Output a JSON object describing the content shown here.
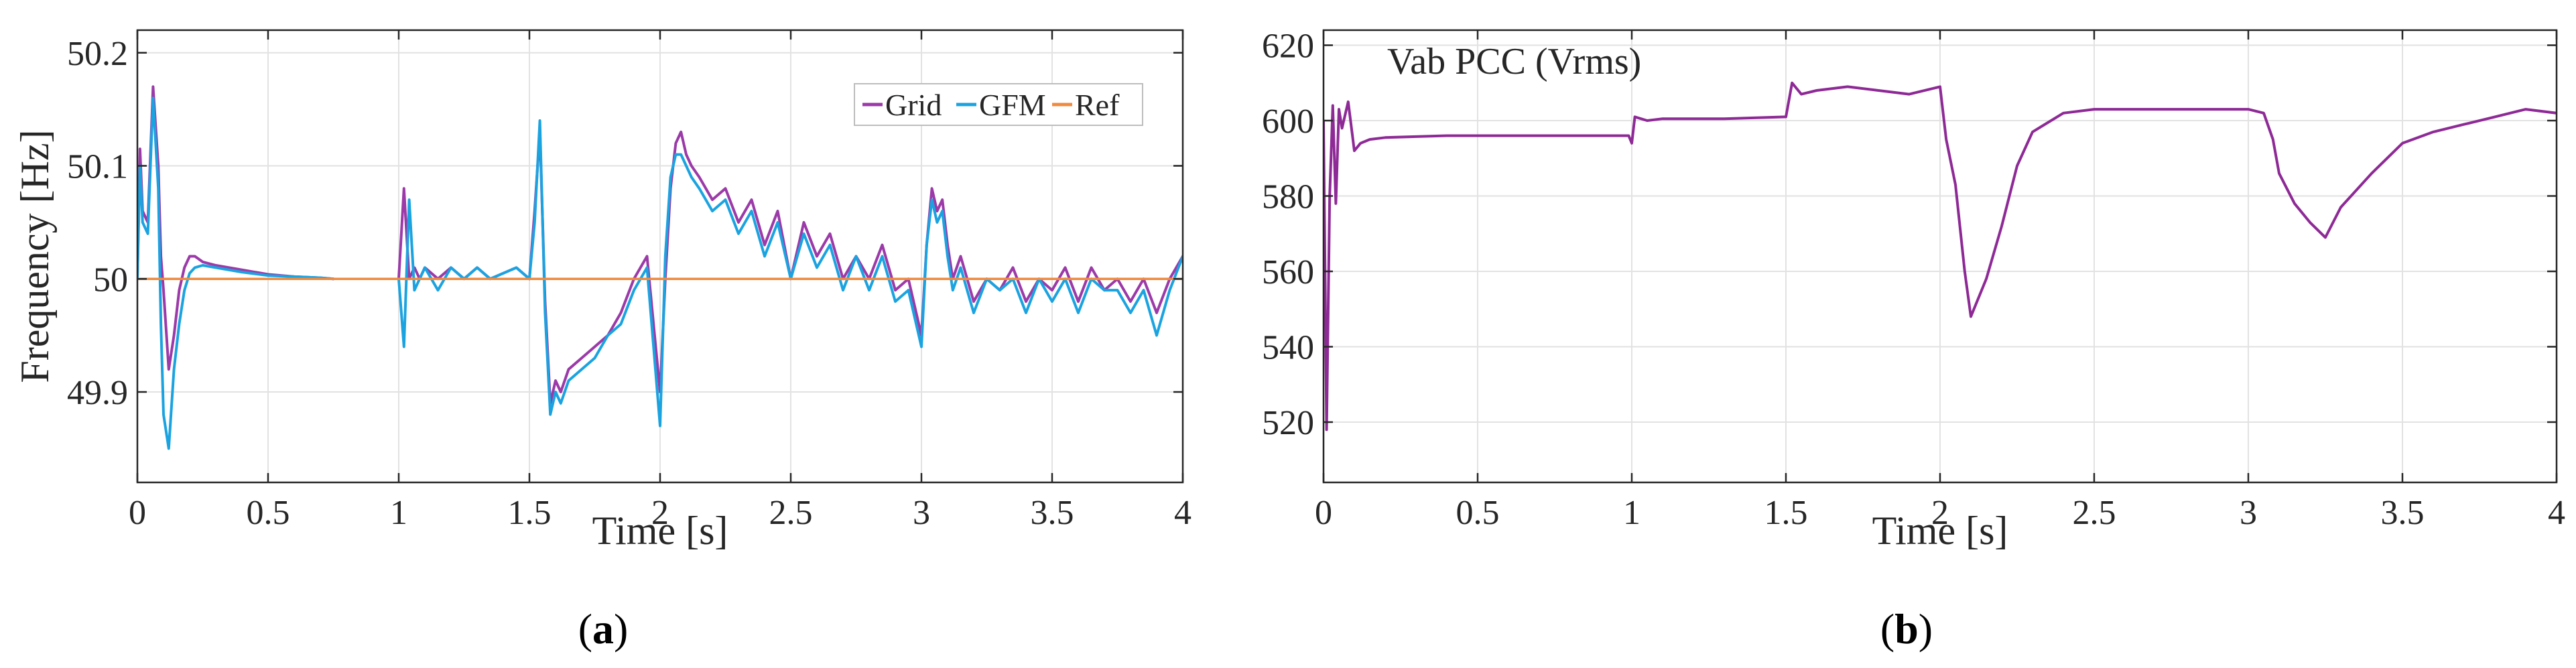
{
  "chart_data": [
    {
      "type": "line",
      "panel_label": "(a)",
      "title": "",
      "xlabel": "Time [s]",
      "ylabel": "Frequency [Hz]",
      "xlim": [
        0,
        4
      ],
      "ylim": [
        49.82,
        50.22
      ],
      "xticks": [
        0,
        0.5,
        1,
        1.5,
        2,
        2.5,
        3,
        3.5,
        4
      ],
      "xtick_labels": [
        "0",
        "0.5",
        "1",
        "1.5",
        "2",
        "2.5",
        "3",
        "3.5",
        "4"
      ],
      "yticks": [
        49.9,
        50,
        50.1,
        50.2
      ],
      "ytick_labels": [
        "49.9",
        "50",
        "50.1",
        "50.2"
      ],
      "grid": true,
      "legend": {
        "placement": "top-right",
        "entries": [
          "Grid",
          "GFM",
          "Ref"
        ]
      },
      "series": [
        {
          "name": "Grid",
          "color": "#9b3aa8",
          "x": [
            0,
            0.01,
            0.02,
            0.04,
            0.06,
            0.08,
            0.09,
            0.1,
            0.12,
            0.14,
            0.16,
            0.18,
            0.2,
            0.22,
            0.25,
            0.3,
            0.4,
            0.5,
            0.6,
            0.7,
            0.75,
            null,
            1.0,
            1.02,
            1.04,
            1.06,
            1.08,
            1.1,
            1.15,
            1.2,
            1.25,
            1.3,
            1.35,
            1.4,
            1.45,
            1.5,
            1.52,
            1.54,
            1.56,
            1.58,
            1.6,
            1.62,
            1.65,
            1.7,
            1.75,
            1.8,
            1.85,
            1.9,
            1.95,
            2.0,
            2.02,
            2.04,
            2.06,
            2.08,
            2.1,
            2.12,
            2.15,
            2.2,
            2.25,
            2.3,
            2.35,
            2.4,
            2.45,
            2.5,
            2.55,
            2.6,
            2.65,
            2.7,
            2.75,
            2.8,
            2.85,
            2.9,
            2.95,
            3.0,
            3.02,
            3.04,
            3.06,
            3.08,
            3.1,
            3.12,
            3.15,
            3.2,
            3.25,
            3.3,
            3.35,
            3.4,
            3.45,
            3.5,
            3.55,
            3.6,
            3.65,
            3.7,
            3.75,
            3.8,
            3.85,
            3.9,
            3.95,
            4.0
          ],
          "y": [
            50.0,
            50.115,
            50.06,
            50.05,
            50.17,
            50.1,
            50.02,
            49.99,
            49.92,
            49.95,
            49.99,
            50.01,
            50.02,
            50.02,
            50.015,
            50.012,
            50.008,
            50.004,
            50.002,
            50.001,
            50.0,
            null,
            50.0,
            50.08,
            50.0,
            50.01,
            50.0,
            50.01,
            50.0,
            50.01,
            50.0,
            50.01,
            50.0,
            50.005,
            50.01,
            50.0,
            50.06,
            50.13,
            49.98,
            49.89,
            49.91,
            49.9,
            49.92,
            49.93,
            49.94,
            49.95,
            49.97,
            50.0,
            50.02,
            49.9,
            50.0,
            50.08,
            50.12,
            50.13,
            50.11,
            50.1,
            50.09,
            50.07,
            50.08,
            50.05,
            50.07,
            50.03,
            50.06,
            50.0,
            50.05,
            50.02,
            50.04,
            50.0,
            50.02,
            50.0,
            50.03,
            49.99,
            50.0,
            49.95,
            50.03,
            50.08,
            50.06,
            50.07,
            50.03,
            50.0,
            50.02,
            49.98,
            50.0,
            49.99,
            50.01,
            49.98,
            50.0,
            49.99,
            50.01,
            49.98,
            50.01,
            49.99,
            50.0,
            49.98,
            50.0,
            49.97,
            50.0,
            50.02
          ]
        },
        {
          "name": "GFM",
          "color": "#1ba3e0",
          "x": [
            0,
            0.01,
            0.02,
            0.04,
            0.06,
            0.08,
            0.09,
            0.1,
            0.12,
            0.14,
            0.16,
            0.18,
            0.2,
            0.22,
            0.25,
            0.3,
            0.4,
            0.5,
            0.6,
            0.7,
            0.75,
            null,
            1.0,
            1.02,
            1.04,
            1.06,
            1.08,
            1.1,
            1.15,
            1.2,
            1.25,
            1.3,
            1.35,
            1.4,
            1.45,
            1.5,
            1.52,
            1.54,
            1.56,
            1.58,
            1.6,
            1.62,
            1.65,
            1.7,
            1.75,
            1.8,
            1.85,
            1.9,
            1.95,
            2.0,
            2.02,
            2.04,
            2.06,
            2.08,
            2.1,
            2.12,
            2.15,
            2.2,
            2.25,
            2.3,
            2.35,
            2.4,
            2.45,
            2.5,
            2.55,
            2.6,
            2.65,
            2.7,
            2.75,
            2.8,
            2.85,
            2.9,
            2.95,
            3.0,
            3.02,
            3.04,
            3.06,
            3.08,
            3.1,
            3.12,
            3.15,
            3.2,
            3.25,
            3.3,
            3.35,
            3.4,
            3.45,
            3.5,
            3.55,
            3.6,
            3.65,
            3.7,
            3.75,
            3.8,
            3.85,
            3.9,
            3.95,
            4.0
          ],
          "y": [
            50.0,
            50.1,
            50.05,
            50.04,
            50.16,
            50.08,
            49.96,
            49.88,
            49.85,
            49.92,
            49.96,
            49.99,
            50.005,
            50.01,
            50.012,
            50.01,
            50.006,
            50.003,
            50.002,
            50.001,
            50.0,
            null,
            50.0,
            49.94,
            50.07,
            49.99,
            50.0,
            50.01,
            49.99,
            50.01,
            50.0,
            50.01,
            50.0,
            50.005,
            50.01,
            50.0,
            50.05,
            50.14,
            49.97,
            49.88,
            49.9,
            49.89,
            49.91,
            49.92,
            49.93,
            49.95,
            49.96,
            49.99,
            50.01,
            49.87,
            50.02,
            50.09,
            50.11,
            50.11,
            50.1,
            50.09,
            50.08,
            50.06,
            50.07,
            50.04,
            50.06,
            50.02,
            50.05,
            50.0,
            50.04,
            50.01,
            50.03,
            49.99,
            50.02,
            49.99,
            50.02,
            49.98,
            49.99,
            49.94,
            50.03,
            50.07,
            50.05,
            50.06,
            50.02,
            49.99,
            50.01,
            49.97,
            50.0,
            49.99,
            50.0,
            49.97,
            50.0,
            49.98,
            50.0,
            49.97,
            50.0,
            49.99,
            49.99,
            49.97,
            49.99,
            49.95,
            49.99,
            50.02
          ]
        },
        {
          "name": "Ref",
          "color": "#f08a3e",
          "x": [
            0,
            4
          ],
          "y": [
            50.0,
            50.0
          ]
        }
      ]
    },
    {
      "type": "line",
      "panel_label": "(b)",
      "title": "",
      "annotation": "Vab PCC (Vrms)",
      "xlabel": "Time [s]",
      "ylabel": "",
      "xlim": [
        0,
        4
      ],
      "ylim": [
        504,
        624
      ],
      "xticks": [
        0,
        0.5,
        1,
        1.5,
        2,
        2.5,
        3,
        3.5,
        4
      ],
      "xtick_labels": [
        "0",
        "0.5",
        "1",
        "1.5",
        "2",
        "2.5",
        "3",
        "3.5",
        "4"
      ],
      "yticks": [
        520,
        540,
        560,
        580,
        600,
        620
      ],
      "ytick_labels": [
        "520",
        "540",
        "560",
        "580",
        "600",
        "620"
      ],
      "grid": true,
      "series": [
        {
          "name": "Vab PCC",
          "color": "#8e2a96",
          "x": [
            0,
            0.01,
            0.02,
            0.03,
            0.04,
            0.05,
            0.06,
            0.08,
            0.1,
            0.12,
            0.15,
            0.2,
            0.4,
            0.6,
            0.8,
            0.99,
            1.0,
            1.01,
            1.05,
            1.1,
            1.3,
            1.5,
            1.52,
            1.55,
            1.6,
            1.7,
            1.8,
            1.9,
            2.0,
            2.02,
            2.05,
            2.08,
            2.1,
            2.12,
            2.15,
            2.2,
            2.25,
            2.3,
            2.4,
            2.5,
            2.6,
            2.7,
            2.8,
            2.9,
            3.0,
            3.05,
            3.08,
            3.1,
            3.15,
            3.2,
            3.25,
            3.3,
            3.4,
            3.5,
            3.6,
            3.7,
            3.8,
            3.9,
            4.0
          ],
          "y": [
            600,
            518,
            580,
            604,
            578,
            603,
            598,
            605,
            592,
            594,
            595,
            595.5,
            596,
            596,
            596,
            596,
            594,
            601,
            600,
            600.5,
            600.5,
            601,
            610,
            607,
            608,
            609,
            608,
            607,
            609,
            595,
            583,
            560,
            548,
            552,
            558,
            572,
            588,
            597,
            602,
            603,
            603,
            603,
            603,
            603,
            603,
            602,
            595,
            586,
            578,
            573,
            569,
            577,
            586,
            594,
            597,
            599,
            601,
            603,
            602
          ]
        }
      ]
    }
  ]
}
